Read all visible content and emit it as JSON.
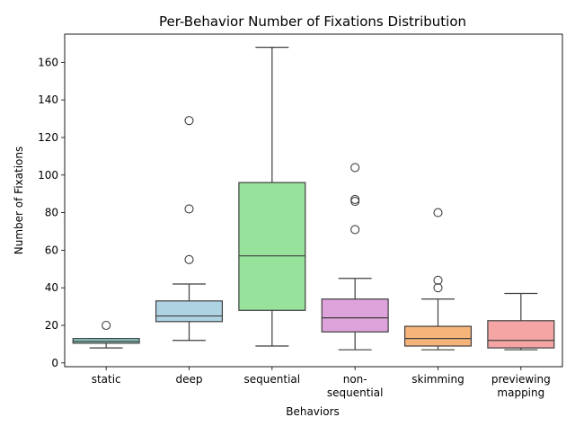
{
  "chart_data": {
    "type": "box",
    "title": "Per-Behavior Number of Fixations Distribution",
    "xlabel": "Behaviors",
    "ylabel": "Number of Fixations",
    "ylim": [
      -2,
      175
    ],
    "yticks": [
      0,
      20,
      40,
      60,
      80,
      100,
      120,
      140,
      160
    ],
    "grid": false,
    "legend": "none",
    "series": [
      {
        "label": [
          "static"
        ],
        "color": "#8fd3c9",
        "whisker_low": 8,
        "q1": 10.5,
        "median": 11.5,
        "q3": 13,
        "whisker_high": 13,
        "outliers": [
          20
        ]
      },
      {
        "label": [
          "deep"
        ],
        "color": "#aed3e3",
        "whisker_low": 12,
        "q1": 22,
        "median": 25,
        "q3": 33,
        "whisker_high": 42,
        "outliers": [
          55,
          82,
          129
        ]
      },
      {
        "label": [
          "sequential"
        ],
        "color": "#98e39b",
        "whisker_low": 9,
        "q1": 28,
        "median": 57,
        "q3": 96,
        "whisker_high": 168,
        "outliers": []
      },
      {
        "label": [
          "non-",
          "sequential"
        ],
        "color": "#dea3da",
        "whisker_low": 7,
        "q1": 16.5,
        "median": 24,
        "q3": 34,
        "whisker_high": 45,
        "outliers": [
          71,
          86,
          87,
          104
        ]
      },
      {
        "label": [
          "skimming"
        ],
        "color": "#f6b47b",
        "whisker_low": 7,
        "q1": 9,
        "median": 13,
        "q3": 19.5,
        "whisker_high": 34,
        "outliers": [
          40,
          44,
          80
        ]
      },
      {
        "label": [
          "previewing",
          "mapping"
        ],
        "color": "#f6a5a5",
        "whisker_low": 7,
        "q1": 8,
        "median": 12,
        "q3": 22.5,
        "whisker_high": 37,
        "outliers": []
      }
    ]
  }
}
